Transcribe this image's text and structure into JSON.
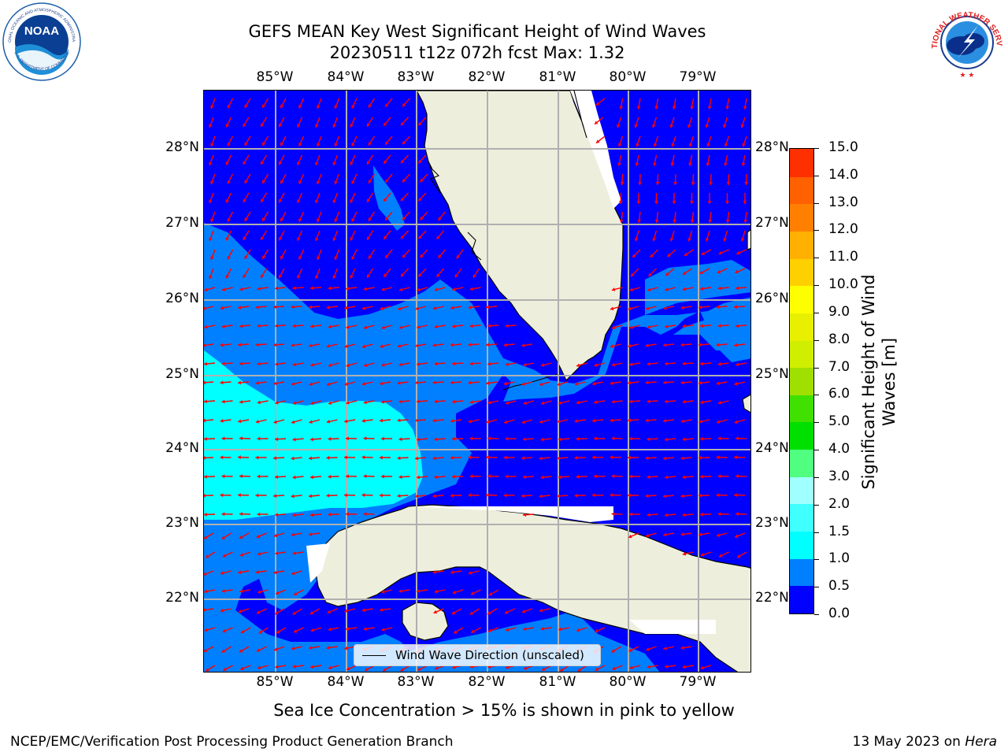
{
  "title": {
    "line1": "GEFS MEAN Key West Significant Height of Wind Waves",
    "line2": "20230511 t12z 072h fcst   Max: 1.32"
  },
  "map": {
    "lon_labels": [
      "85°W",
      "84°W",
      "83°W",
      "82°W",
      "81°W",
      "80°W",
      "79°W"
    ],
    "lat_labels": [
      "28°N",
      "27°N",
      "26°N",
      "25°N",
      "24°N",
      "23°N",
      "22°N"
    ],
    "legend_label": "Wind Wave Direction (unscaled)",
    "colors": {
      "land": "#eeeedd",
      "coast": "#000000",
      "arrow": "#ff0000",
      "grid": "#b0b0b0"
    }
  },
  "colorbar": {
    "title": "Significant Height of Wind Waves [m]",
    "title_line1": "Significant Height of Wind",
    "title_line2": "Waves [m]",
    "tick_labels": [
      "0.0",
      "0.5",
      "1.0",
      "1.5",
      "2.0",
      "3.0",
      "4.0",
      "5.0",
      "6.0",
      "7.0",
      "8.0",
      "9.0",
      "10.0",
      "11.0",
      "12.0",
      "13.0",
      "14.0",
      "15.0"
    ],
    "colors": [
      "#0000ff",
      "#0080ff",
      "#00ffff",
      "#40ffff",
      "#a0ffff",
      "#50ff80",
      "#00e000",
      "#40e000",
      "#a0e000",
      "#d0ee00",
      "#e8f000",
      "#ffff00",
      "#ffd000",
      "#ffb000",
      "#ff8000",
      "#ff6000",
      "#ff3000",
      "#ff0000"
    ]
  },
  "footnote": "Sea Ice Concentration > 15% is shown in pink to yellow",
  "credit": "NCEP/EMC/Verification Post Processing Product Generation Branch",
  "date_text": "13 May 2023 on",
  "machine": "Hera",
  "logos": {
    "left_name": "NOAA",
    "left_text": "NATIONAL OCEANIC AND ATMOSPHERIC ADMINISTRATION",
    "left_text_bottom": "U.S. DEPARTMENT OF COMMERCE",
    "right_text": "NATIONAL WEATHER SERVICE"
  }
}
